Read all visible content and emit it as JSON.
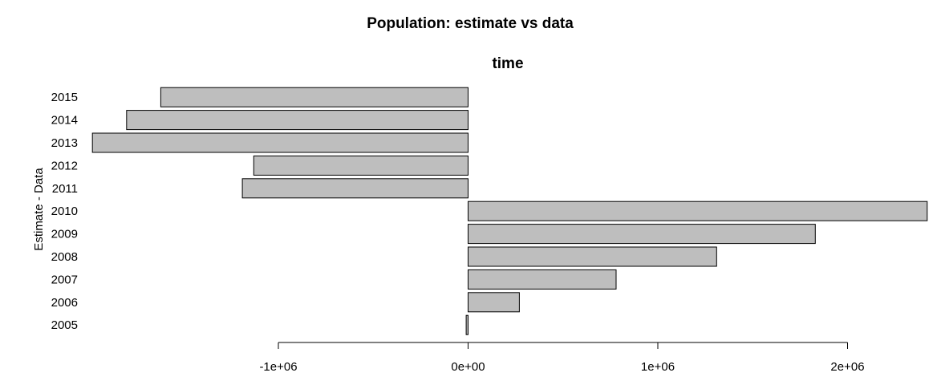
{
  "chart_data": {
    "type": "bar",
    "orientation": "horizontal",
    "title": "Population: estimate vs data",
    "subtitle": "time",
    "ylabel": "Estimate - Data",
    "xlabel": "",
    "categories": [
      "2005",
      "2006",
      "2007",
      "2008",
      "2009",
      "2010",
      "2011",
      "2012",
      "2013",
      "2014",
      "2015"
    ],
    "values": [
      -10000,
      270000,
      780000,
      1310000,
      1830000,
      2420000,
      -1190000,
      -1130000,
      -1980000,
      -1800000,
      -1620000
    ],
    "xlim": [
      -2000000,
      2420000
    ],
    "x_ticks": [
      -1000000,
      0,
      1000000,
      2000000
    ],
    "x_tick_labels": [
      "-1e+06",
      "0e+00",
      "1e+06",
      "2e+06"
    ],
    "bar_color": "#bebebe",
    "grid": false
  }
}
